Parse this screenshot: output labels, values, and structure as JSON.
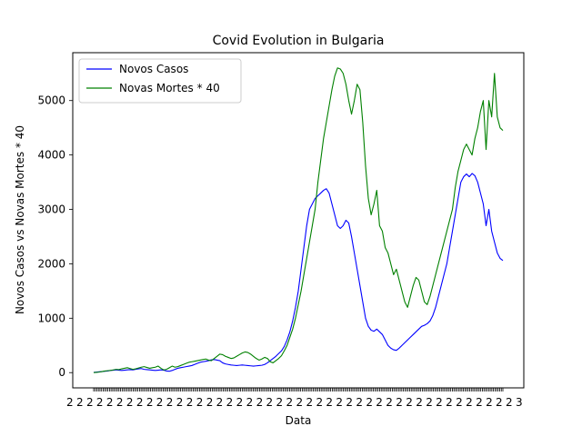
{
  "chart_data": {
    "type": "line",
    "title": "Covid Evolution in Bulgaria",
    "xlabel": "Data",
    "ylabel": "Novos Casos vs Novas Mortes * 40",
    "ylim": [
      -280,
      5880
    ],
    "y_ticks": [
      0,
      1000,
      2000,
      3000,
      4000,
      5000
    ],
    "x_tick_count": 260,
    "x_tick_label_sample": "2",
    "x_tick_label_end": "3",
    "legend_position": "top-left",
    "grid": false,
    "series": [
      {
        "name": "Novos Casos",
        "color": "#0000ff",
        "values": [
          5,
          10,
          15,
          20,
          25,
          30,
          40,
          45,
          50,
          45,
          40,
          45,
          50,
          55,
          50,
          60,
          70,
          75,
          60,
          55,
          50,
          45,
          40,
          45,
          50,
          45,
          30,
          25,
          40,
          60,
          80,
          90,
          100,
          110,
          120,
          130,
          150,
          170,
          190,
          200,
          210,
          220,
          235,
          240,
          230,
          220,
          180,
          160,
          150,
          140,
          135,
          130,
          135,
          140,
          135,
          130,
          125,
          120,
          125,
          130,
          135,
          150,
          180,
          220,
          260,
          300,
          350,
          400,
          480,
          600,
          750,
          950,
          1200,
          1500,
          1900,
          2300,
          2700,
          3000,
          3100,
          3200,
          3250,
          3300,
          3350,
          3380,
          3300,
          3100,
          2900,
          2700,
          2650,
          2700,
          2800,
          2750,
          2500,
          2200,
          1900,
          1600,
          1300,
          1000,
          850,
          780,
          760,
          800,
          750,
          700,
          600,
          500,
          450,
          420,
          410,
          450,
          500,
          550,
          600,
          650,
          700,
          750,
          800,
          850,
          870,
          900,
          950,
          1050,
          1200,
          1400,
          1600,
          1800,
          2000,
          2300,
          2600,
          2900,
          3200,
          3500,
          3600,
          3650,
          3600,
          3660,
          3620,
          3500,
          3300,
          3100,
          2700,
          3000,
          2600,
          2400,
          2200,
          2100,
          2060
        ]
      },
      {
        "name": "Novas Mortes * 40",
        "color": "#008000",
        "values": [
          0,
          5,
          10,
          20,
          30,
          35,
          40,
          50,
          60,
          55,
          70,
          80,
          90,
          75,
          60,
          70,
          85,
          100,
          110,
          95,
          80,
          90,
          100,
          120,
          80,
          50,
          60,
          90,
          120,
          100,
          110,
          130,
          150,
          170,
          190,
          200,
          210,
          220,
          230,
          240,
          250,
          230,
          220,
          260,
          300,
          340,
          330,
          300,
          280,
          260,
          270,
          300,
          330,
          360,
          380,
          370,
          340,
          300,
          260,
          230,
          250,
          280,
          260,
          200,
          180,
          220,
          260,
          310,
          400,
          500,
          650,
          800,
          1000,
          1250,
          1500,
          1800,
          2100,
          2400,
          2700,
          3000,
          3500,
          3900,
          4300,
          4600,
          4900,
          5200,
          5450,
          5600,
          5580,
          5500,
          5300,
          5000,
          4750,
          5000,
          5300,
          5200,
          4600,
          3800,
          3200,
          2900,
          3100,
          3350,
          2700,
          2600,
          2300,
          2200,
          2000,
          1800,
          1900,
          1700,
          1500,
          1300,
          1200,
          1400,
          1600,
          1750,
          1700,
          1500,
          1300,
          1250,
          1400,
          1600,
          1800,
          2000,
          2200,
          2400,
          2600,
          2800,
          3000,
          3400,
          3700,
          3900,
          4100,
          4200,
          4100,
          4000,
          4300,
          4500,
          4800,
          5000,
          4100,
          5000,
          4700,
          5500,
          4700,
          4500,
          4450
        ]
      }
    ]
  }
}
